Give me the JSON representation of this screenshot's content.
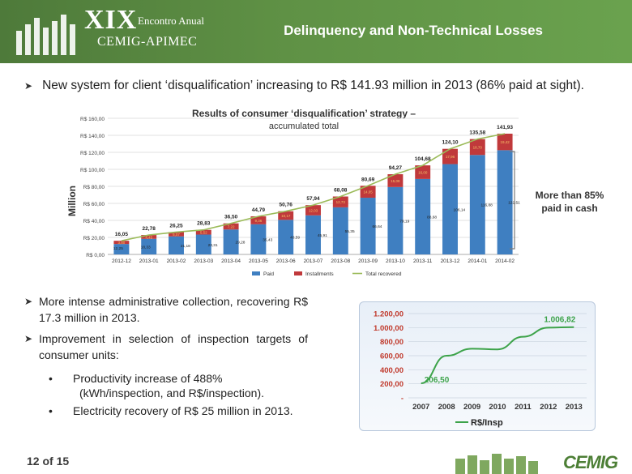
{
  "header": {
    "event_number": "XIX",
    "event_subtitle": "Encontro Anual",
    "organization": "CEMIG-APIMEC",
    "title": "Delinquency and Non-Technical Losses"
  },
  "bullet_top": "New system for client ‘disqualification’ increasing to R$ 141.93 million in 2013 (86% paid at sight).",
  "chart_data": [
    {
      "type": "bar",
      "title": "Results of consumer ‘disqualification’ strategy –",
      "subtitle": "accumulated total",
      "ylabel": "Million",
      "ylim": [
        0,
        160
      ],
      "y_ticks": [
        "R$ 0,00",
        "R$ 20,00",
        "R$ 40,00",
        "R$ 60,00",
        "R$ 80,00",
        "R$ 100,00",
        "R$ 120,00",
        "R$ 140,00",
        "R$ 160,00"
      ],
      "categories": [
        "2012-12",
        "2013-01",
        "2013-02",
        "2013-03",
        "2013-04",
        "2013-05",
        "2013-06",
        "2013-07",
        "2013-08",
        "2013-09",
        "2013-10",
        "2013-11",
        "2013-12",
        "2014-01",
        "2014-02"
      ],
      "series": [
        {
          "name": "Paid",
          "values": [
            12.25,
            18.33,
            21.18,
            23.31,
            29.28,
            35.43,
            40.59,
            45.91,
            55.35,
            66.64,
            79.19,
            88.68,
            106.14,
            116.88,
            122.51
          ]
        },
        {
          "name": "Installments",
          "values": [
            3.8,
            4.45,
            5.07,
            5.52,
            7.22,
            9.36,
            10.17,
            12.03,
            12.73,
            14.05,
            15.08,
            16.0,
            17.96,
            18.7,
            19.42
          ]
        },
        {
          "name": "Total recovered",
          "values": [
            16.05,
            22.78,
            26.25,
            28.83,
            36.5,
            44.79,
            50.76,
            57.94,
            68.08,
            80.69,
            94.27,
            104.68,
            124.1,
            135.58,
            141.93
          ]
        }
      ],
      "paid_labels": [
        "12,25",
        "18,33",
        "21,18",
        "23,31",
        "29,28",
        "35,43",
        "40,59",
        "45,91",
        "55,35",
        "66,64",
        "79,19",
        "88,68",
        "106,14",
        "116,88",
        "122,51"
      ],
      "installment_labels": [
        "3,80",
        "4,45",
        "5,07",
        "5,52",
        "7,22",
        "9,36",
        "10,17",
        "12,03",
        "12,73",
        "14,05",
        "15,08",
        "16,00",
        "17,96",
        "18,70",
        "19,42"
      ],
      "total_labels": [
        "16,05",
        "22,78",
        "26,25",
        "28,83",
        "36,50",
        "44,79",
        "50,76",
        "57,94",
        "68,08",
        "80,69",
        "94,27",
        "104,68",
        "124,10",
        "135,58",
        "141,93"
      ],
      "colors": {
        "paid": "#3f7fc1",
        "installments": "#c0393b",
        "total": "#9bbb59"
      },
      "legend_placement": "bottom",
      "grid": true
    },
    {
      "type": "line",
      "x": [
        "2007",
        "2008",
        "2009",
        "2010",
        "2011",
        "2012",
        "2013"
      ],
      "series": [
        {
          "name": "R$/Insp",
          "values": [
            206.5,
            600,
            700,
            690,
            870,
            1000,
            1006.82
          ]
        }
      ],
      "y_ticks": [
        "-",
        "200,00",
        "400,00",
        "600,00",
        "800,00",
        "1.000,00",
        "1.200,00"
      ],
      "ylim": [
        0,
        1200
      ],
      "point_labels": {
        "first": "206,50",
        "last": "1.006,82"
      },
      "colors": {
        "line": "#3da34a",
        "label": "#3da34a",
        "tick": "#c0392b"
      },
      "legend_placement": "bottom",
      "grid": true
    }
  ],
  "note_85": "More than 85% paid in cash",
  "bullets": {
    "b1": "More intense administrative collection, recovering R$ 17.3 million in 2013.",
    "b2": "Improvement in selection of inspection targets of consumer units:",
    "s1_line1": "Productivity increase of 488%",
    "s1_line2": "(kWh/inspection, and R$/inspection).",
    "s2": "Electricity recovery of R$ 25 million in 2013."
  },
  "footer": {
    "page_number": "12 of 15",
    "logo_text": "CEMIG"
  }
}
